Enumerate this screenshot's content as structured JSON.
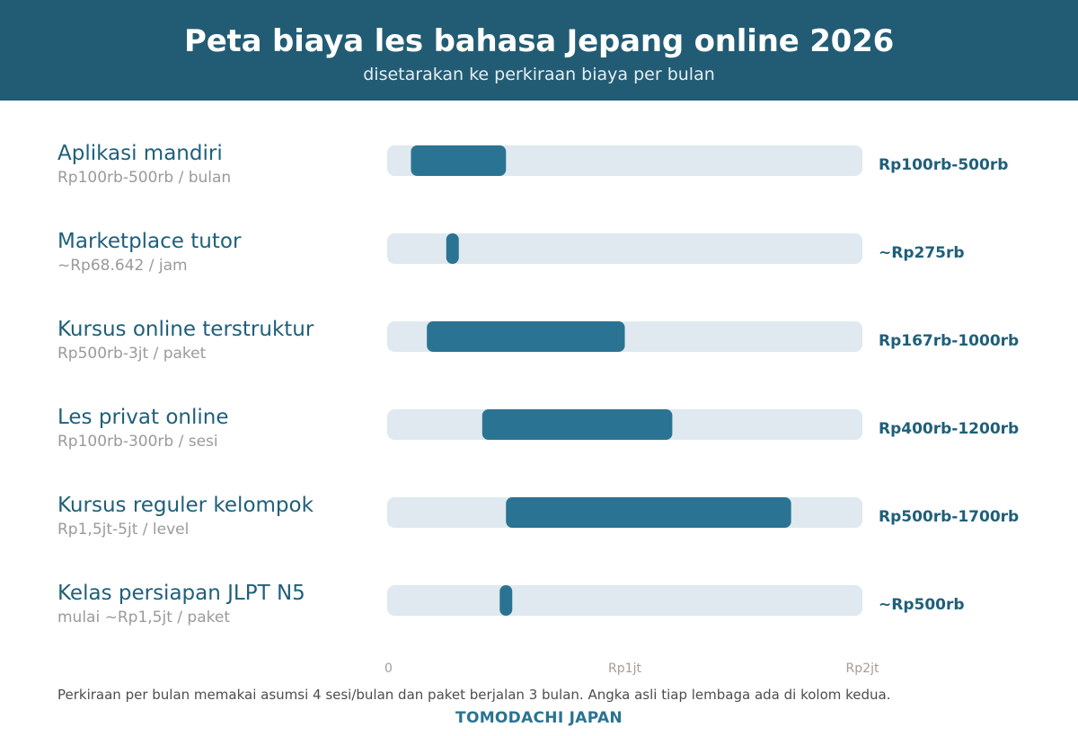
{
  "header": {
    "title": "Peta biaya les bahasa Jepang online 2026",
    "subtitle": "disetarakan ke perkiraan biaya per bulan"
  },
  "chart_data": {
    "type": "bar",
    "orientation": "horizontal-range",
    "unit": "Rp ribu per bulan",
    "xlim": [
      0,
      2000
    ],
    "ticks": [
      {
        "value": 0,
        "label": "0"
      },
      {
        "value": 1000,
        "label": "Rp1jt"
      },
      {
        "value": 2000,
        "label": "Rp2jt"
      }
    ],
    "grid": false,
    "legend": "none",
    "categories": [
      {
        "name": "Aplikasi mandiri",
        "raw_price": "Rp100rb-500rb / bulan",
        "low": 100,
        "high": 500,
        "value_label": "Rp100rb-500rb"
      },
      {
        "name": "Marketplace tutor",
        "raw_price": "~Rp68.642 / jam",
        "low": 275,
        "high": 275,
        "value_label": "~Rp275rb"
      },
      {
        "name": "Kursus online terstruktur",
        "raw_price": "Rp500rb-3jt / paket",
        "low": 167,
        "high": 1000,
        "value_label": "Rp167rb-1000rb"
      },
      {
        "name": "Les privat online",
        "raw_price": "Rp100rb-300rb / sesi",
        "low": 400,
        "high": 1200,
        "value_label": "Rp400rb-1200rb"
      },
      {
        "name": "Kursus reguler kelompok",
        "raw_price": "Rp1,5jt-5jt / level",
        "low": 500,
        "high": 1700,
        "value_label": "Rp500rb-1700rb"
      },
      {
        "name": "Kelas persiapan JLPT N5",
        "raw_price": "mulai ~Rp1,5jt / paket",
        "low": 500,
        "high": 500,
        "value_label": "~Rp500rb"
      }
    ]
  },
  "colors": {
    "header_bg": "#225c74",
    "track": "#dfe9ef",
    "bar": "#2b7392",
    "category_label": "#1f5f7a",
    "raw_price": "#9a9a9a",
    "value_label": "#1f5f7a"
  },
  "footnote": "Perkiraan per bulan memakai asumsi 4 sesi/bulan dan paket berjalan 3 bulan. Angka asli tiap lembaga ada di kolom kedua.",
  "brand": "TOMODACHI JAPAN"
}
